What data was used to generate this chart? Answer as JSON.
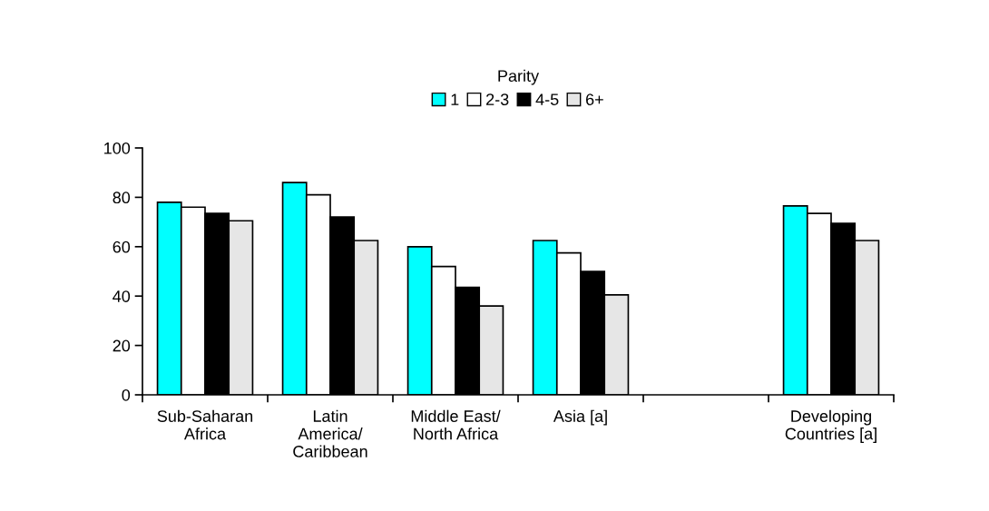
{
  "chart_data": {
    "type": "bar",
    "legend_title": "Parity",
    "legend": "top",
    "categories": [
      "Sub-Saharan\nAfrica",
      "Latin\nAmerica/\nCaribbean",
      "Middle East/\nNorth Africa",
      "Asia [a]",
      null,
      "Developing\nCountries [a]"
    ],
    "series": [
      {
        "name": "1",
        "color": "#00ffff",
        "values": [
          78,
          86,
          60,
          62.5,
          null,
          76.5
        ]
      },
      {
        "name": "2-3",
        "color": "#ffffff",
        "values": [
          76,
          81,
          52,
          57.5,
          null,
          73.5
        ]
      },
      {
        "name": "4-5",
        "color": "#000000",
        "values": [
          73.5,
          72,
          43.5,
          50,
          null,
          69.5
        ]
      },
      {
        "name": "6+",
        "color": "#e6e6e6",
        "values": [
          70.5,
          62.5,
          36,
          40.5,
          null,
          62.5
        ]
      }
    ],
    "ylim": [
      0,
      100
    ],
    "yticks": [
      0,
      20,
      40,
      60,
      80,
      100
    ],
    "grid": false
  }
}
